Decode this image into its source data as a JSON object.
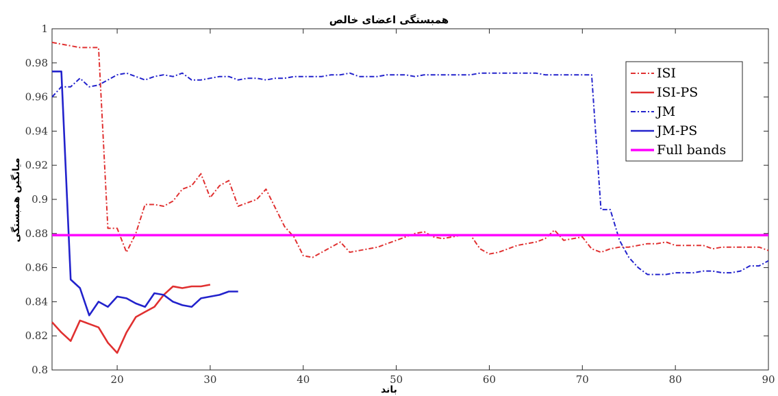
{
  "chart_data": {
    "type": "line",
    "title": "همبستگی اعضای خالص",
    "xlabel": "باند",
    "ylabel": "میانگین همبستگی",
    "xlim": [
      13,
      90
    ],
    "ylim": [
      0.8,
      1.0
    ],
    "xticks": [
      20,
      30,
      40,
      50,
      60,
      70,
      80,
      90
    ],
    "yticks": [
      0.8,
      0.82,
      0.84,
      0.86,
      0.88,
      0.9,
      0.92,
      0.94,
      0.96,
      0.98,
      1
    ],
    "ytick_labels": [
      "0.8",
      "0.82",
      "0.84",
      "0.86",
      "0.88",
      "0.9",
      "0.92",
      "0.94",
      "0.96",
      "0.98",
      "1"
    ],
    "grid": false,
    "legend_position": "top-right",
    "series": [
      {
        "name": "ISI",
        "color": "#e03030",
        "style": "dashdot",
        "x": [
          13,
          14,
          15,
          16,
          17,
          18,
          19,
          20,
          21,
          22,
          23,
          24,
          25,
          26,
          27,
          28,
          29,
          30,
          31,
          32,
          33,
          34,
          35,
          36,
          37,
          38,
          39,
          40,
          41,
          42,
          43,
          44,
          45,
          46,
          47,
          48,
          49,
          50,
          51,
          52,
          53,
          54,
          55,
          56,
          57,
          58,
          59,
          60,
          61,
          62,
          63,
          64,
          65,
          66,
          67,
          68,
          69,
          70,
          71,
          72,
          73,
          74,
          75,
          76,
          77,
          78,
          79,
          80,
          81,
          82,
          83,
          84,
          85,
          86,
          87,
          88,
          89,
          90
        ],
        "y": [
          0.992,
          0.991,
          0.99,
          0.989,
          0.989,
          0.989,
          0.883,
          0.883,
          0.869,
          0.88,
          0.897,
          0.897,
          0.896,
          0.899,
          0.906,
          0.908,
          0.915,
          0.901,
          0.908,
          0.911,
          0.896,
          0.898,
          0.9,
          0.906,
          0.895,
          0.884,
          0.878,
          0.867,
          0.866,
          0.869,
          0.872,
          0.875,
          0.869,
          0.87,
          0.871,
          0.872,
          0.874,
          0.876,
          0.878,
          0.88,
          0.881,
          0.878,
          0.877,
          0.878,
          0.879,
          0.879,
          0.871,
          0.868,
          0.869,
          0.871,
          0.873,
          0.874,
          0.875,
          0.877,
          0.882,
          0.876,
          0.877,
          0.878,
          0.871,
          0.869,
          0.871,
          0.872,
          0.872,
          0.873,
          0.874,
          0.874,
          0.875,
          0.873,
          0.873,
          0.873,
          0.873,
          0.871,
          0.872,
          0.872,
          0.872,
          0.872,
          0.872,
          0.87
        ]
      },
      {
        "name": "ISI-PS",
        "color": "#e03030",
        "style": "solid",
        "x": [
          13,
          14,
          15,
          16,
          17,
          18,
          19,
          20,
          21,
          22,
          23,
          24,
          25,
          26,
          27,
          28,
          29,
          30
        ],
        "y": [
          0.828,
          0.822,
          0.817,
          0.829,
          0.827,
          0.825,
          0.816,
          0.81,
          0.822,
          0.831,
          0.834,
          0.837,
          0.844,
          0.849,
          0.848,
          0.849,
          0.849,
          0.85
        ]
      },
      {
        "name": "JM",
        "color": "#2222cc",
        "style": "dashdot",
        "x": [
          13,
          14,
          15,
          16,
          17,
          18,
          19,
          20,
          21,
          22,
          23,
          24,
          25,
          26,
          27,
          28,
          29,
          30,
          31,
          32,
          33,
          34,
          35,
          36,
          37,
          38,
          39,
          40,
          41,
          42,
          43,
          44,
          45,
          46,
          47,
          48,
          49,
          50,
          51,
          52,
          53,
          54,
          55,
          56,
          57,
          58,
          59,
          60,
          61,
          62,
          63,
          64,
          65,
          66,
          67,
          68,
          69,
          70,
          71,
          72,
          73,
          74,
          75,
          76,
          77,
          78,
          79,
          80,
          81,
          82,
          83,
          84,
          85,
          86,
          87,
          88,
          89,
          90
        ],
        "y": [
          0.96,
          0.966,
          0.966,
          0.971,
          0.966,
          0.967,
          0.97,
          0.973,
          0.974,
          0.972,
          0.97,
          0.972,
          0.973,
          0.972,
          0.974,
          0.97,
          0.97,
          0.971,
          0.972,
          0.972,
          0.97,
          0.971,
          0.971,
          0.97,
          0.971,
          0.971,
          0.972,
          0.972,
          0.972,
          0.972,
          0.973,
          0.973,
          0.974,
          0.972,
          0.972,
          0.972,
          0.973,
          0.973,
          0.973,
          0.972,
          0.973,
          0.973,
          0.973,
          0.973,
          0.973,
          0.973,
          0.974,
          0.974,
          0.974,
          0.974,
          0.974,
          0.974,
          0.974,
          0.973,
          0.973,
          0.973,
          0.973,
          0.973,
          0.973,
          0.894,
          0.894,
          0.876,
          0.866,
          0.86,
          0.856,
          0.856,
          0.856,
          0.857,
          0.857,
          0.857,
          0.858,
          0.858,
          0.857,
          0.857,
          0.858,
          0.861,
          0.861,
          0.864
        ]
      },
      {
        "name": "JM-PS",
        "color": "#2222cc",
        "style": "solid",
        "x": [
          13,
          14,
          15,
          16,
          17,
          18,
          19,
          20,
          21,
          22,
          23,
          24,
          25,
          26,
          27,
          28,
          29,
          30,
          31,
          32,
          33
        ],
        "y": [
          0.975,
          0.975,
          0.853,
          0.848,
          0.832,
          0.84,
          0.837,
          0.843,
          0.842,
          0.839,
          0.837,
          0.845,
          0.844,
          0.84,
          0.838,
          0.837,
          0.842,
          0.843,
          0.844,
          0.846,
          0.846
        ]
      },
      {
        "name": "Full bands",
        "color": "#ff00ff",
        "style": "solid-thick",
        "x": [
          13,
          90
        ],
        "y": [
          0.879,
          0.879
        ]
      }
    ]
  }
}
